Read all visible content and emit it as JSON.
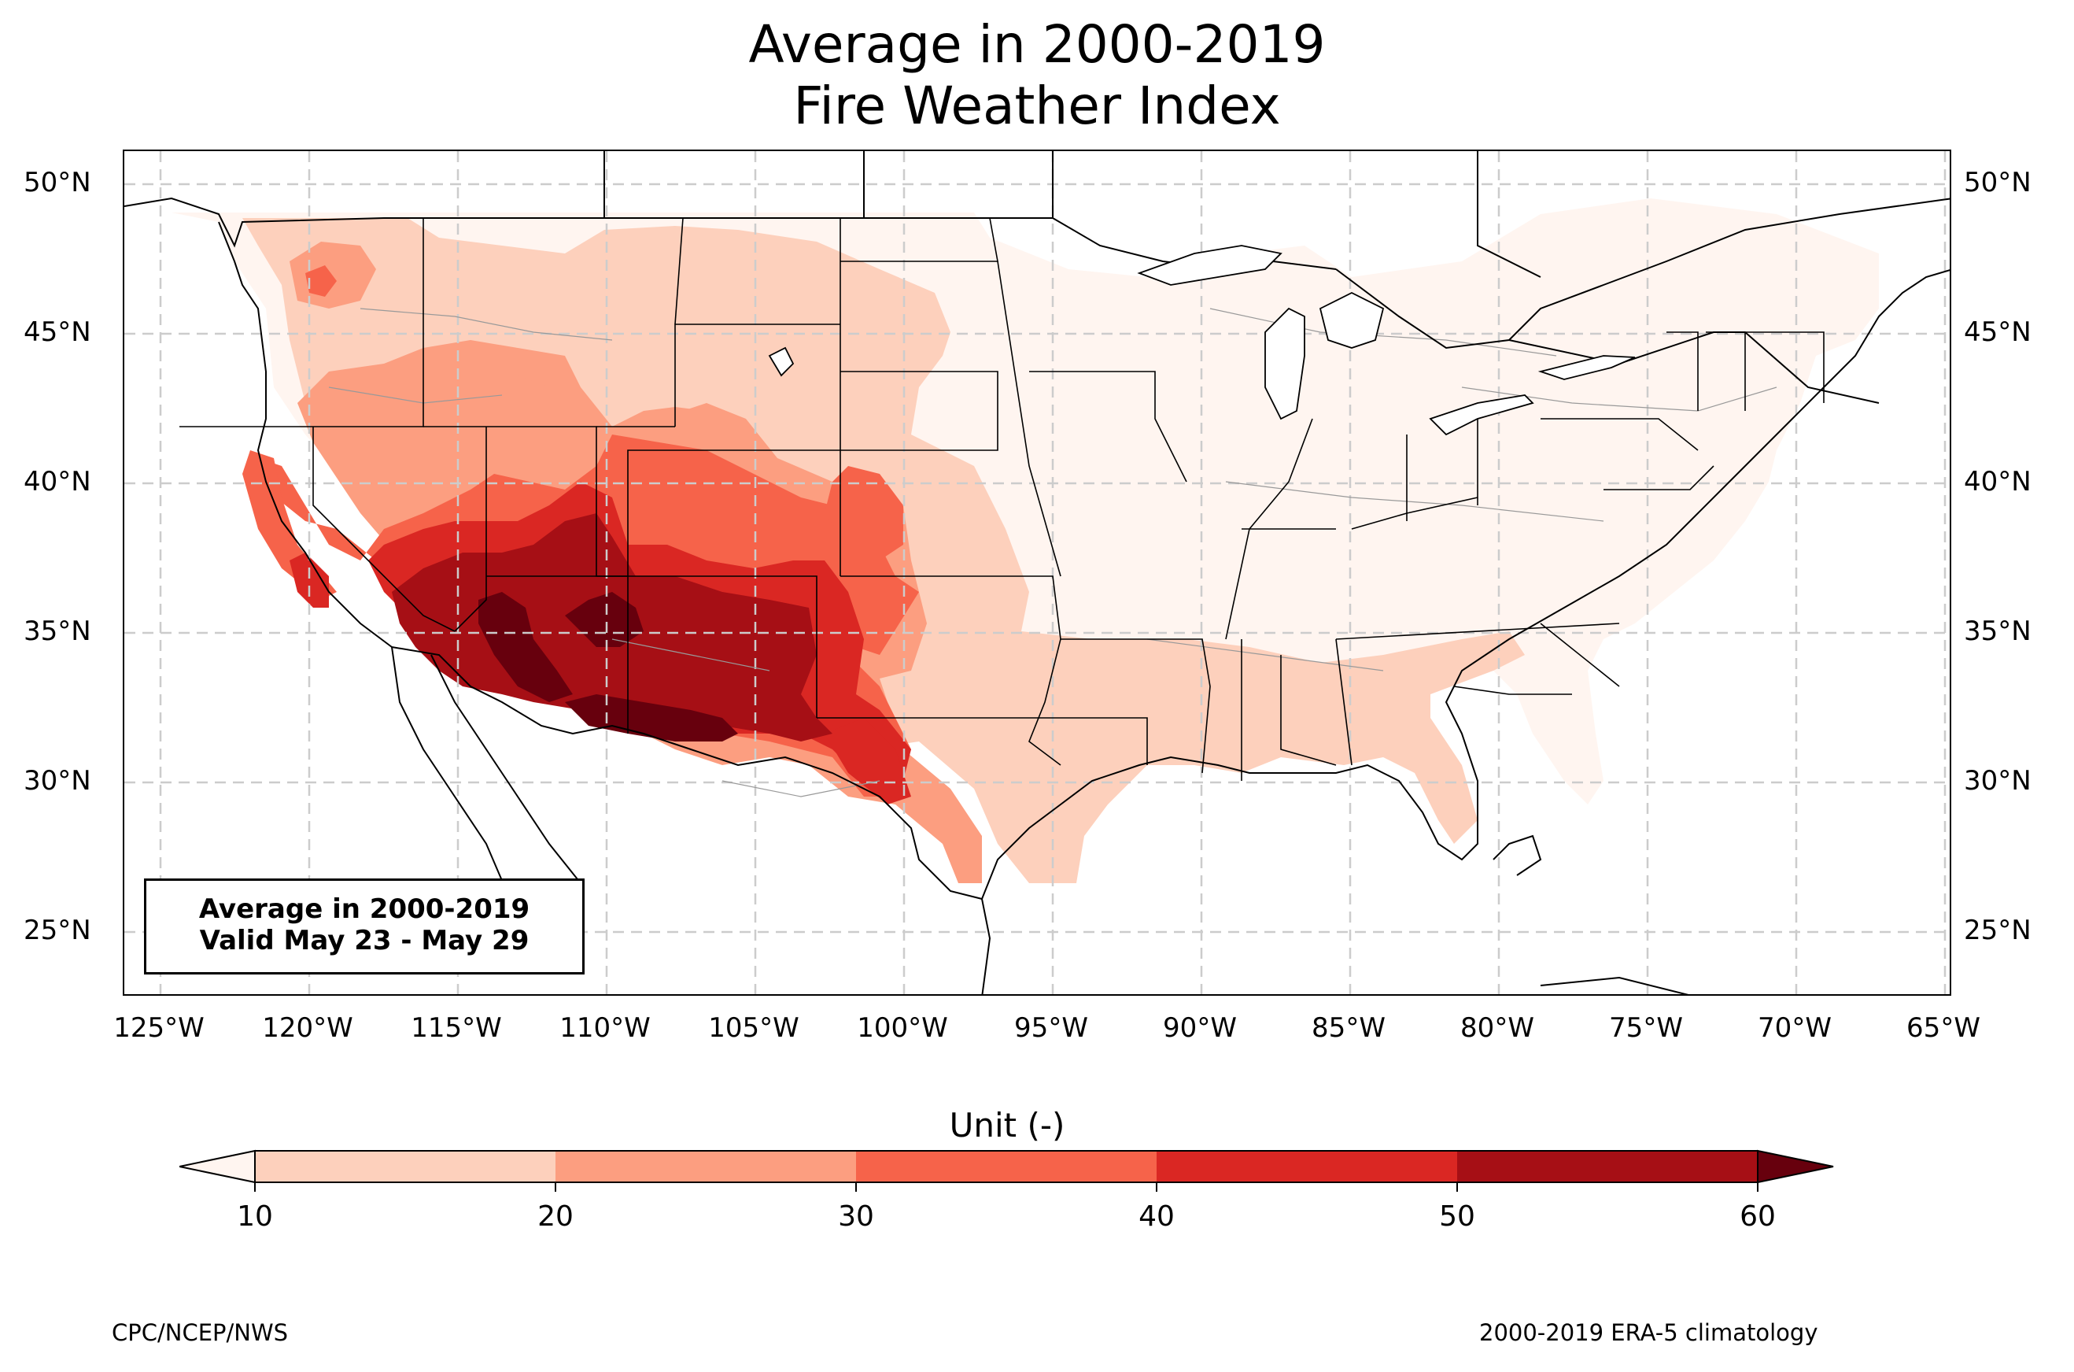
{
  "title": {
    "line1": "Average in 2000-2019",
    "line2": "Fire Weather Index"
  },
  "lat_labels": [
    "50°N",
    "45°N",
    "40°N",
    "35°N",
    "30°N",
    "25°N"
  ],
  "lon_labels": [
    "125°W",
    "120°W",
    "115°W",
    "110°W",
    "105°W",
    "100°W",
    "95°W",
    "90°W",
    "85°W",
    "80°W",
    "75°W",
    "70°W",
    "65°W"
  ],
  "info_box": {
    "line1": "Average in 2000-2019",
    "line2": "Valid May 23 - May 29"
  },
  "colorbar": {
    "title": "Unit (-)",
    "ticks": [
      "10",
      "20",
      "30",
      "40",
      "50",
      "60"
    ],
    "colors": {
      "under": "#fff5f0",
      "c10_20": "#fdd0bc",
      "c20_30": "#fc9e80",
      "c30_40": "#f6634a",
      "c40_50": "#da2723",
      "c50_60": "#a60f15",
      "over": "#67000d"
    }
  },
  "footer": {
    "left": "CPC/NCEP/NWS",
    "right": "2000-2019 ERA-5 climatology"
  }
}
